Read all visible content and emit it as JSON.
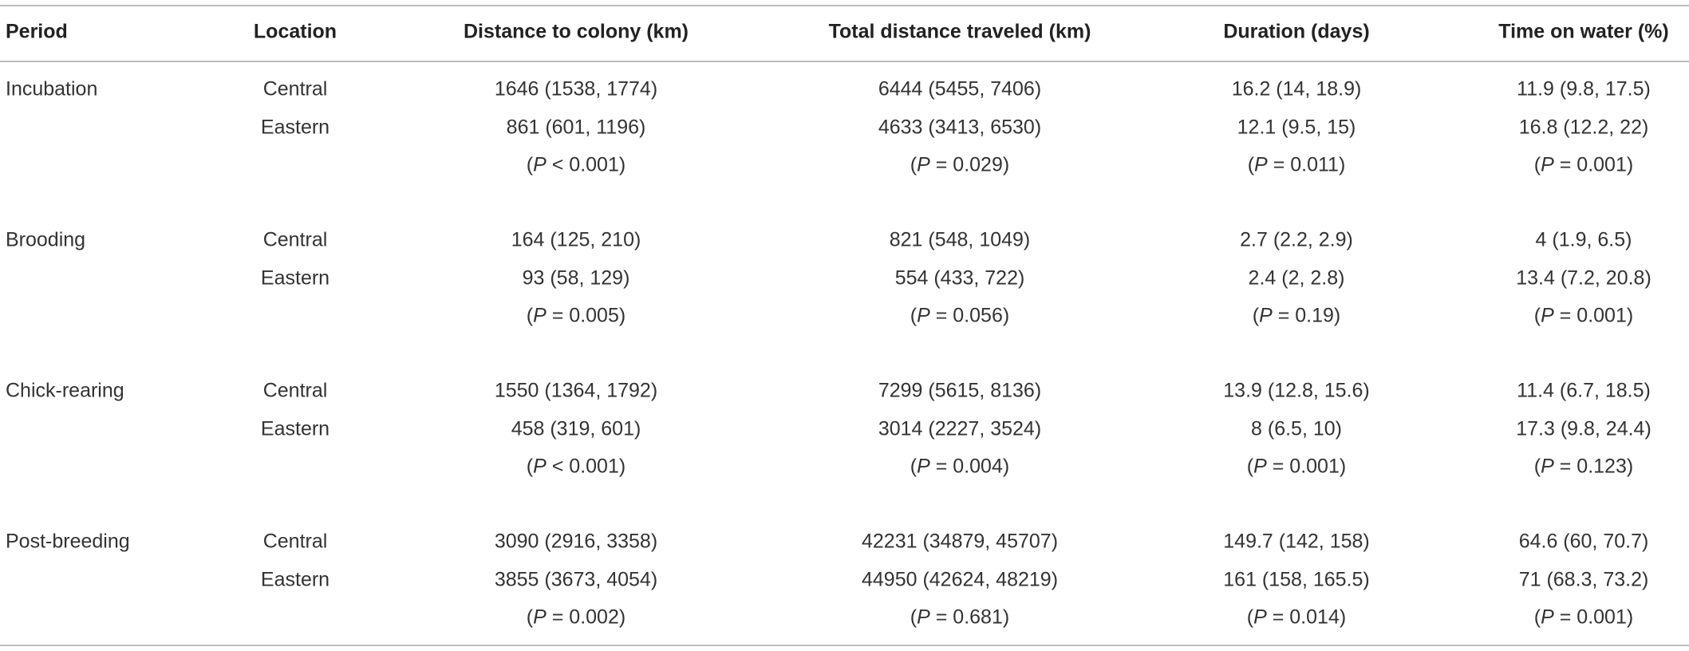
{
  "table": {
    "header": [
      "Period",
      "Location",
      "Distance to colony (km)",
      "Total distance traveled (km)",
      "Duration (days)",
      "Time on water (%)"
    ],
    "groups": [
      {
        "period": "Incubation",
        "rows": [
          [
            "Central",
            "1646 (1538, 1774)",
            "6444 (5455, 7406)",
            "16.2 (14, 18.9)",
            "11.9 (9.8, 17.5)"
          ],
          [
            "Eastern",
            "861 (601, 1196)",
            "4633 (3413, 6530)",
            "12.1 (9.5, 15)",
            "16.8 (12.2, 22)"
          ]
        ],
        "p": [
          "(P < 0.001)",
          "(P = 0.029)",
          "(P = 0.011)",
          "(P = 0.001)"
        ]
      },
      {
        "period": "Brooding",
        "rows": [
          [
            "Central",
            "164 (125, 210)",
            "821 (548, 1049)",
            "2.7 (2.2, 2.9)",
            "4 (1.9, 6.5)"
          ],
          [
            "Eastern",
            "93 (58, 129)",
            "554 (433, 722)",
            "2.4 (2, 2.8)",
            "13.4 (7.2, 20.8)"
          ]
        ],
        "p": [
          "(P = 0.005)",
          "(P = 0.056)",
          "(P = 0.19)",
          "(P = 0.001)"
        ]
      },
      {
        "period": "Chick-rearing",
        "rows": [
          [
            "Central",
            "1550 (1364, 1792)",
            "7299 (5615, 8136)",
            "13.9 (12.8, 15.6)",
            "11.4 (6.7, 18.5)"
          ],
          [
            "Eastern",
            "458 (319, 601)",
            "3014 (2227, 3524)",
            "8 (6.5, 10)",
            "17.3 (9.8, 24.4)"
          ]
        ],
        "p": [
          "(P < 0.001)",
          "(P = 0.004)",
          "(P = 0.001)",
          "(P = 0.123)"
        ]
      },
      {
        "period": "Post-breeding",
        "rows": [
          [
            "Central",
            "3090 (2916, 3358)",
            "42231 (34879, 45707)",
            "149.7 (142, 158)",
            "64.6 (60, 70.7)"
          ],
          [
            "Eastern",
            "3855 (3673, 4054)",
            "44950 (42624, 48219)",
            "161 (158, 165.5)",
            "71 (68.3, 73.2)"
          ]
        ],
        "p": [
          "(P = 0.002)",
          "(P = 0.681)",
          "(P = 0.014)",
          "(P = 0.001)"
        ]
      }
    ]
  }
}
